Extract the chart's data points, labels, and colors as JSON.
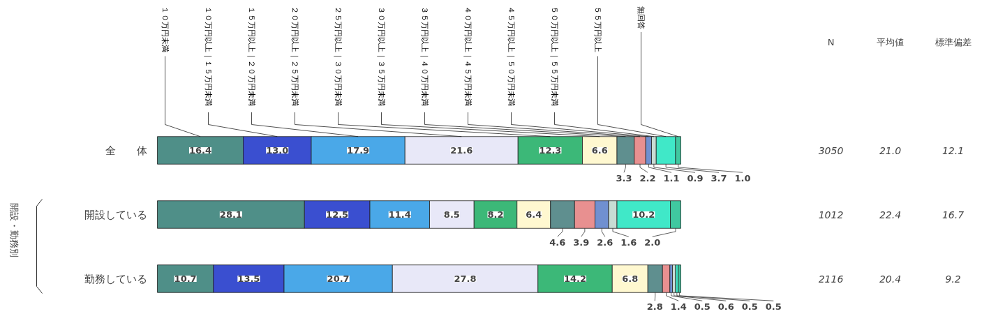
{
  "chart_data": {
    "type": "bar",
    "orientation": "horizontal",
    "stacked": true,
    "categories": [
      "全　　体",
      "開設している",
      "勤務している"
    ],
    "series": [
      {
        "name": "１０万円未満",
        "color": "#4f8f88",
        "values": [
          16.4,
          28.1,
          10.7
        ],
        "value_labels": [
          "16.4",
          "28.1",
          "10.7"
        ]
      },
      {
        "name": "１０万円以上｜１５万円未満",
        "color": "#3a4fd0",
        "values": [
          13.0,
          12.5,
          13.5
        ],
        "value_labels": [
          "13.0",
          "12.5",
          "13.5"
        ]
      },
      {
        "name": "１５万円以上｜２０万円未満",
        "color": "#4aa8e8",
        "values": [
          17.9,
          11.4,
          20.7
        ],
        "value_labels": [
          "17.9",
          "11.4",
          "20.7"
        ]
      },
      {
        "name": "２０万円以上｜２５万円未満",
        "color": "#e8e8f8",
        "values": [
          21.6,
          8.5,
          27.8
        ],
        "value_labels": [
          "21.6",
          "8.5",
          "27.8"
        ]
      },
      {
        "name": "２５万円以上｜３０万円未満",
        "color": "#3cb878",
        "values": [
          12.3,
          8.2,
          14.2
        ],
        "value_labels": [
          "12.3",
          "8.2",
          "14.2"
        ]
      },
      {
        "name": "３０万円以上｜３５万円未満",
        "color": "#fff8d0",
        "values": [
          6.6,
          6.4,
          6.8
        ],
        "value_labels": [
          "6.6",
          "6.4",
          "6.8"
        ]
      },
      {
        "name": "３５万円以上｜４０万円未満",
        "color": "#5f8f8f",
        "values": [
          3.3,
          4.6,
          2.8
        ],
        "value_labels": [
          "3.3",
          "4.6",
          "2.8"
        ]
      },
      {
        "name": "４０万円以上｜４５万円未満",
        "color": "#e89090",
        "values": [
          2.2,
          3.9,
          1.4
        ],
        "value_labels": [
          "2.2",
          "3.9",
          "1.4"
        ]
      },
      {
        "name": "４５万円以上｜５０万円未満",
        "color": "#7090d0",
        "values": [
          1.1,
          2.6,
          0.5
        ],
        "value_labels": [
          "1.1",
          "2.6",
          "0.5"
        ]
      },
      {
        "name": "５０万円以上｜５５万円未満",
        "color": "#c8dcd4",
        "values": [
          0.9,
          1.6,
          0.6
        ],
        "value_labels": [
          "0.9",
          "1.6",
          "0.6"
        ]
      },
      {
        "name": "５５万円以上",
        "color": "#40e8c8",
        "values": [
          3.7,
          10.2,
          0.5
        ],
        "value_labels": [
          "3.7",
          "10.2",
          "0.5"
        ]
      },
      {
        "name": "無回答",
        "color": "#40c8a0",
        "values": [
          1.0,
          2.0,
          0.5
        ],
        "value_labels": [
          "1.0",
          "2.0",
          "0.5"
        ]
      }
    ],
    "annotations": [
      "N",
      "平均値",
      "標準偏差",
      "3050",
      "21.0",
      "12.1",
      "1012",
      "22.4",
      "16.7",
      "2116",
      "20.4",
      "9.2",
      "開設・勤務別"
    ]
  }
}
